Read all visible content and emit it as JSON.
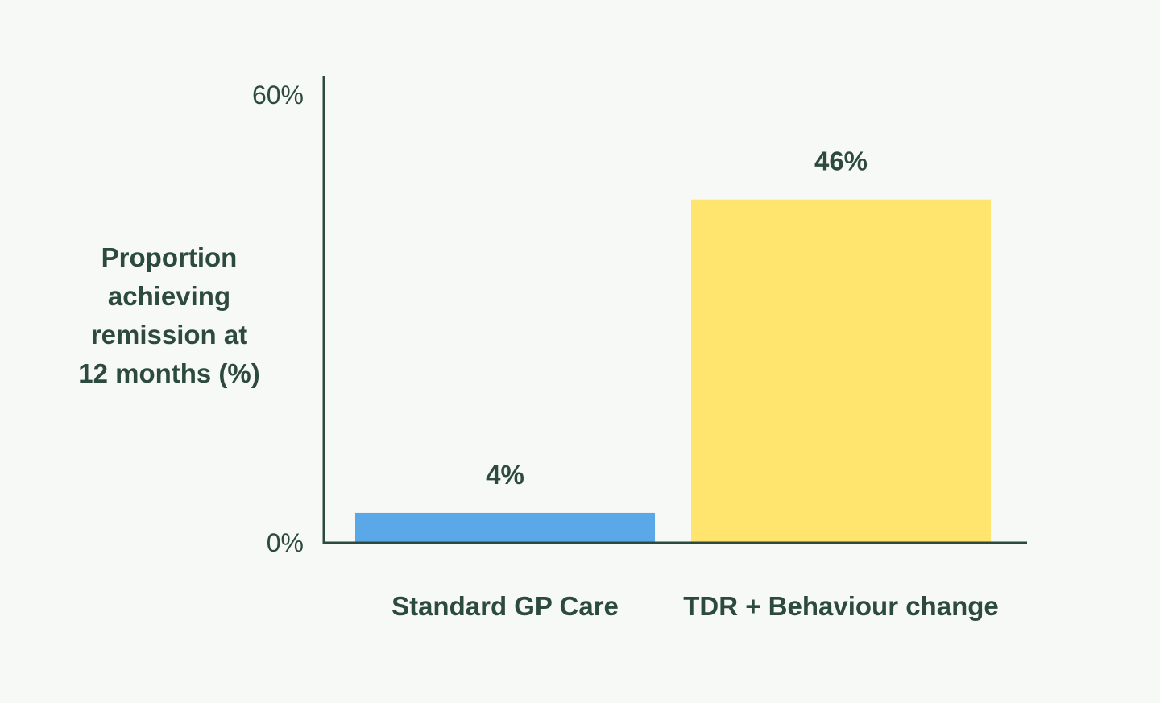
{
  "chart_data": {
    "type": "bar",
    "title": "",
    "xlabel": "",
    "ylabel_lines": [
      "Proportion",
      "achieving",
      "remission at",
      "12 months (%)"
    ],
    "categories": [
      "Standard GP Care",
      "TDR + Behaviour change"
    ],
    "values": [
      4,
      46
    ],
    "data_labels": [
      "4%",
      "46%"
    ],
    "bar_colors": [
      "#5ba8e8",
      "#ffe46e"
    ],
    "ylim": [
      0,
      60
    ],
    "y_ticks": [
      0,
      60
    ],
    "y_tick_labels": [
      "0%",
      "60%"
    ],
    "grid": false,
    "legend": "none"
  },
  "colors": {
    "background": "#f7f9f6",
    "text": "#2c4a3e",
    "axis": "#2c4a3e"
  }
}
